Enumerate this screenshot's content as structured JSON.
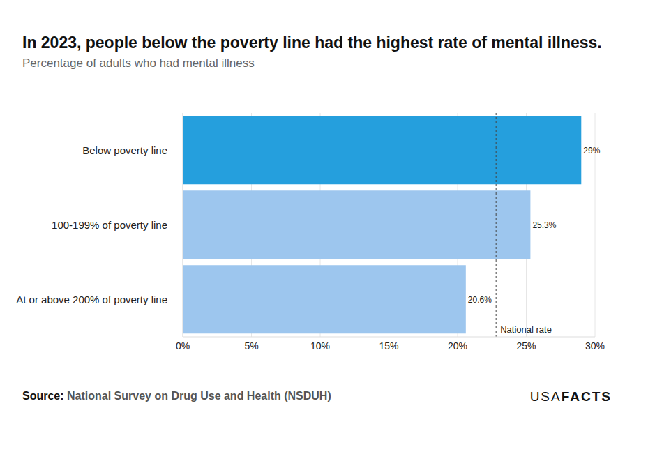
{
  "chart_data": {
    "type": "bar",
    "orientation": "horizontal",
    "title": "In 2023, people below the poverty line had the highest rate of mental illness.",
    "subtitle": "Percentage of adults who had mental illness",
    "categories": [
      "Below poverty line",
      "100-199% of poverty line",
      "At or above 200% of poverty line"
    ],
    "values": [
      29,
      25.3,
      20.6
    ],
    "value_labels": [
      "29%",
      "25.3%",
      "20.6%"
    ],
    "data_labels": true,
    "colors": [
      "#259fdd",
      "#9dc6ee",
      "#9dc6ee"
    ],
    "xlim": [
      0,
      30
    ],
    "xticks": [
      {
        "value": 0,
        "label": "0%"
      },
      {
        "value": 5,
        "label": "5%"
      },
      {
        "value": 10,
        "label": "10%"
      },
      {
        "value": 15,
        "label": "15%"
      },
      {
        "value": 20,
        "label": "20%"
      },
      {
        "value": 25,
        "label": "25%"
      },
      {
        "value": 30,
        "label": "30%"
      }
    ],
    "grid": true,
    "annotations": [
      {
        "x": 22.8,
        "text": "National rate"
      }
    ],
    "source_label": "Source:",
    "source": "National Survey on Drug Use and Health (NSDUH)",
    "logo": [
      "USA",
      "FACTS"
    ]
  }
}
